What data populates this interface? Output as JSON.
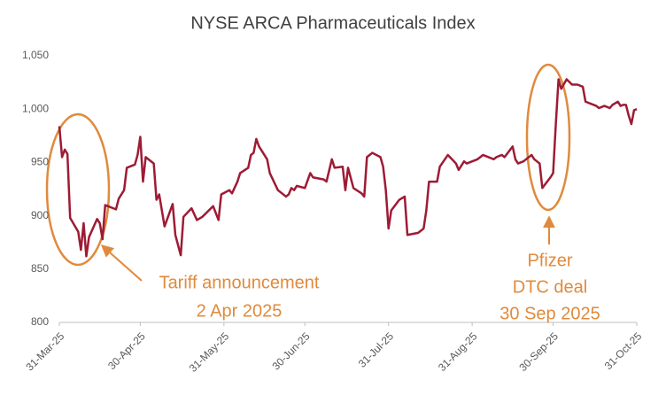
{
  "chart_data": {
    "type": "line",
    "title": "NYSE ARCA Pharmaceuticals Index",
    "color": "#9e1b35",
    "x": [
      "2025-03-31",
      "2025-04-01",
      "2025-04-02",
      "2025-04-03",
      "2025-04-04",
      "2025-04-07",
      "2025-04-08",
      "2025-04-09",
      "2025-04-10",
      "2025-04-11",
      "2025-04-14",
      "2025-04-15",
      "2025-04-16",
      "2025-04-17",
      "2025-04-21",
      "2025-04-22",
      "2025-04-24",
      "2025-04-25",
      "2025-04-28",
      "2025-04-29",
      "2025-04-30",
      "2025-05-01",
      "2025-05-02",
      "2025-05-05",
      "2025-05-06",
      "2025-05-07",
      "2025-05-09",
      "2025-05-12",
      "2025-05-13",
      "2025-05-15",
      "2025-05-16",
      "2025-05-19",
      "2025-05-21",
      "2025-05-23",
      "2025-05-27",
      "2025-05-29",
      "2025-05-30",
      "2025-06-02",
      "2025-06-03",
      "2025-06-05",
      "2025-06-06",
      "2025-06-09",
      "2025-06-10",
      "2025-06-11",
      "2025-06-12",
      "2025-06-13",
      "2025-06-16",
      "2025-06-17",
      "2025-06-20",
      "2025-06-23",
      "2025-06-24",
      "2025-06-25",
      "2025-06-26",
      "2025-06-27",
      "2025-06-30",
      "2025-07-02",
      "2025-07-03",
      "2025-07-07",
      "2025-07-08",
      "2025-07-10",
      "2025-07-11",
      "2025-07-14",
      "2025-07-15",
      "2025-07-16",
      "2025-07-18",
      "2025-07-21",
      "2025-07-22",
      "2025-07-23",
      "2025-07-25",
      "2025-07-28",
      "2025-07-29",
      "2025-07-30",
      "2025-07-31",
      "2025-08-01",
      "2025-08-04",
      "2025-08-06",
      "2025-08-07",
      "2025-08-11",
      "2025-08-13",
      "2025-08-14",
      "2025-08-15",
      "2025-08-18",
      "2025-08-19",
      "2025-08-22",
      "2025-08-25",
      "2025-08-26",
      "2025-08-28",
      "2025-08-29",
      "2025-09-02",
      "2025-09-04",
      "2025-09-08",
      "2025-09-09",
      "2025-09-11",
      "2025-09-12",
      "2025-09-15",
      "2025-09-16",
      "2025-09-17",
      "2025-09-19",
      "2025-09-22",
      "2025-09-23",
      "2025-09-24",
      "2025-09-25",
      "2025-09-26",
      "2025-09-29",
      "2025-09-30",
      "2025-10-01",
      "2025-10-02",
      "2025-10-03",
      "2025-10-05",
      "2025-10-07",
      "2025-10-09",
      "2025-10-11",
      "2025-10-12",
      "2025-10-14",
      "2025-10-16",
      "2025-10-17",
      "2025-10-19",
      "2025-10-21",
      "2025-10-22",
      "2025-10-24",
      "2025-10-25",
      "2025-10-26",
      "2025-10-27",
      "2025-10-28",
      "2025-10-29",
      "2025-10-30",
      "2025-10-31"
    ],
    "values": [
      984,
      955,
      962,
      958,
      898,
      885,
      868,
      893,
      862,
      880,
      897,
      893,
      878,
      910,
      906,
      916,
      924,
      945,
      948,
      957,
      974,
      932,
      955,
      949,
      915,
      920,
      890,
      911,
      882,
      863,
      899,
      907,
      896,
      899,
      909,
      896,
      920,
      924,
      921,
      932,
      940,
      945,
      957,
      959,
      972,
      965,
      953,
      940,
      924,
      918,
      920,
      926,
      924,
      928,
      926,
      940,
      936,
      934,
      932,
      953,
      945,
      946,
      924,
      945,
      926,
      921,
      918,
      955,
      959,
      955,
      946,
      924,
      888,
      905,
      915,
      918,
      882,
      884,
      888,
      905,
      932,
      932,
      946,
      957,
      949,
      943,
      951,
      949,
      953,
      957,
      953,
      955,
      957,
      955,
      965,
      953,
      949,
      951,
      957,
      953,
      951,
      949,
      926,
      936,
      940,
      986,
      1028,
      1019,
      1028,
      1023,
      1023,
      1021,
      1007,
      1005,
      1003,
      1001,
      1003,
      1001,
      1004,
      1007,
      1003,
      1004,
      1004,
      994,
      986,
      999,
      1000
    ],
    "xlim": [
      "2025-03-31",
      "2025-10-31"
    ],
    "xticks": [
      {
        "value": "2025-03-31",
        "label": "31-Mar-25"
      },
      {
        "value": "2025-04-30",
        "label": "30-Apr-25"
      },
      {
        "value": "2025-05-31",
        "label": "31-May-25"
      },
      {
        "value": "2025-06-30",
        "label": "30-Jun-25"
      },
      {
        "value": "2025-07-31",
        "label": "31-Jul-25"
      },
      {
        "value": "2025-08-31",
        "label": "31-Aug-25"
      },
      {
        "value": "2025-09-30",
        "label": "30-Sep-25"
      },
      {
        "value": "2025-10-31",
        "label": "31-Oct-25"
      }
    ],
    "ylim": [
      800,
      1050
    ],
    "yticks": [
      800,
      850,
      900,
      950,
      {
        "value": 1000,
        "label": "1,000"
      },
      {
        "value": 1050,
        "label": "1,050"
      }
    ],
    "grid": false,
    "annotations": [
      {
        "lines": [
          "Tariff announcement",
          "2 Apr 2025"
        ]
      },
      {
        "lines": [
          "Pfizer",
          "DTC deal",
          "30 Sep 2025"
        ]
      }
    ]
  }
}
